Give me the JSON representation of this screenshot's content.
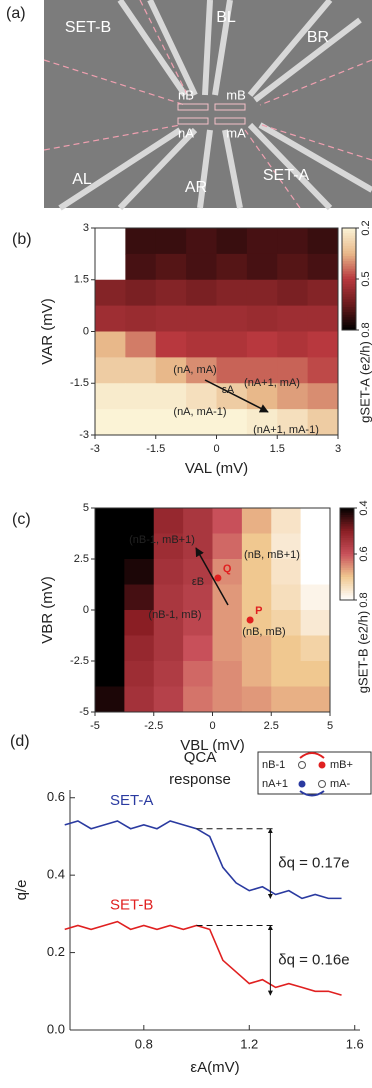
{
  "image_panel": {
    "label": "(a)",
    "labels": [
      "SET-B",
      "BL",
      "BR",
      "AL",
      "AR",
      "SET-A",
      "nB",
      "mB",
      "nA",
      "mA"
    ]
  },
  "chart_data": [
    {
      "type": "heatmap",
      "label": "(b)",
      "x_label": "VAL (mV)",
      "y_label": "VAR (mV)",
      "colorbar_label": "gSET-A (e2/h)",
      "xlim": [
        -3,
        3
      ],
      "ylim": [
        -3,
        3
      ],
      "xticks": [
        -3,
        -1.5,
        0,
        1.5,
        3
      ],
      "yticks": [
        -3,
        -1.5,
        0,
        1.5,
        3
      ],
      "zlim": [
        0.2,
        0.8
      ],
      "zticks": [
        0.2,
        0.5,
        0.8
      ],
      "colormap": [
        "#fbf3d6",
        "#e8b88a",
        "#b8383e",
        "#6a1a1c",
        "#000000"
      ],
      "z": [
        [
          null,
          0.72,
          0.72,
          0.7,
          0.72,
          0.7,
          0.7,
          0.72
        ],
        [
          null,
          0.7,
          0.68,
          0.7,
          0.68,
          0.7,
          0.68,
          0.7
        ],
        [
          0.6,
          0.62,
          0.6,
          0.62,
          0.6,
          0.6,
          0.62,
          0.6
        ],
        [
          0.55,
          0.56,
          0.55,
          0.55,
          0.55,
          0.56,
          0.55,
          0.55
        ],
        [
          0.35,
          0.42,
          0.5,
          0.52,
          0.52,
          0.5,
          0.52,
          0.5
        ],
        [
          0.3,
          0.3,
          0.35,
          0.4,
          0.45,
          0.45,
          0.45,
          0.48
        ],
        [
          0.22,
          0.22,
          0.22,
          0.25,
          0.3,
          0.35,
          0.38,
          0.4
        ],
        [
          0.2,
          0.2,
          0.2,
          0.2,
          0.2,
          0.22,
          0.25,
          0.3
        ]
      ],
      "annotations": [
        "(nA, mA)",
        "(nA+1, mA)",
        "εA",
        "(nA, mA-1)",
        "(nA+1, mA-1)"
      ]
    },
    {
      "type": "heatmap",
      "label": "(c)",
      "x_label": "VBL (mV)",
      "y_label": "VBR (mV)",
      "colorbar_label": "gSET-B (e2/h)",
      "xlim": [
        -5,
        5
      ],
      "ylim": [
        -5,
        5
      ],
      "xticks": [
        -5,
        -2.5,
        0,
        2.5,
        5
      ],
      "yticks": [
        -5,
        -2.5,
        0,
        2.5,
        5
      ],
      "zlim": [
        0.4,
        0.8
      ],
      "zticks": [
        0.4,
        0.6,
        0.8
      ],
      "colormap": [
        "#000000",
        "#8a1e24",
        "#c8505a",
        "#f0c890",
        "#ffffff"
      ],
      "z": [
        [
          0.4,
          0.4,
          0.52,
          0.55,
          0.6,
          0.68,
          0.75,
          0.8
        ],
        [
          0.4,
          0.4,
          0.53,
          0.55,
          0.62,
          0.7,
          0.76,
          0.8
        ],
        [
          0.4,
          0.42,
          0.54,
          0.56,
          0.65,
          0.7,
          0.75,
          0.8
        ],
        [
          0.4,
          0.45,
          0.55,
          0.57,
          0.66,
          0.7,
          0.74,
          0.78
        ],
        [
          0.4,
          0.5,
          0.55,
          0.58,
          0.66,
          0.7,
          0.72,
          0.76
        ],
        [
          0.4,
          0.52,
          0.55,
          0.6,
          0.66,
          0.68,
          0.7,
          0.72
        ],
        [
          0.4,
          0.53,
          0.56,
          0.62,
          0.65,
          0.68,
          0.7,
          0.7
        ],
        [
          0.42,
          0.54,
          0.57,
          0.63,
          0.65,
          0.66,
          0.68,
          0.68
        ]
      ],
      "annotations": [
        "(nB-1, mB+1)",
        "(nB, mB+1)",
        "εB",
        "(nB-1, mB)",
        "(nB, mB)"
      ],
      "points": [
        {
          "label": "Q",
          "x": 0.23,
          "y": 1.57,
          "color": "#e02020"
        },
        {
          "label": "P",
          "x": 1.6,
          "y": -0.49,
          "color": "#e02020"
        }
      ]
    },
    {
      "type": "line",
      "label": "(d)",
      "title": [
        "QCA",
        "response"
      ],
      "x_label": "εA(mV)",
      "y_label": "q/e",
      "xlim": [
        0.52,
        1.62
      ],
      "ylim": [
        0,
        0.62
      ],
      "xticks": [
        0.8,
        1.2,
        1.6
      ],
      "yticks": [
        {
          "value": 0,
          "label": "0.0"
        },
        0.2,
        0.4,
        0.6
      ],
      "x": [
        0.5,
        0.55,
        0.6,
        0.65,
        0.7,
        0.75,
        0.8,
        0.85,
        0.9,
        0.95,
        1.0,
        1.05,
        1.1,
        1.15,
        1.2,
        1.25,
        1.3,
        1.35,
        1.4,
        1.45,
        1.5,
        1.55
      ],
      "series": [
        {
          "name": "SET-A",
          "color": "#2a3aa0",
          "values": [
            0.53,
            0.54,
            0.52,
            0.53,
            0.54,
            0.52,
            0.53,
            0.52,
            0.54,
            0.53,
            0.52,
            0.5,
            0.42,
            0.38,
            0.36,
            0.37,
            0.35,
            0.36,
            0.34,
            0.35,
            0.34,
            0.34
          ]
        },
        {
          "name": "SET-B",
          "color": "#e02020",
          "values": [
            0.26,
            0.27,
            0.26,
            0.27,
            0.28,
            0.26,
            0.27,
            0.26,
            0.27,
            0.26,
            0.27,
            0.26,
            0.18,
            0.15,
            0.12,
            0.13,
            0.11,
            0.12,
            0.11,
            0.1,
            0.1,
            0.09
          ]
        }
      ],
      "annotations": [
        "δq = 0.17e",
        "δq = 0.16e"
      ],
      "inset": [
        "nB-1",
        "mB+",
        "nA+1",
        "mA-"
      ]
    }
  ]
}
